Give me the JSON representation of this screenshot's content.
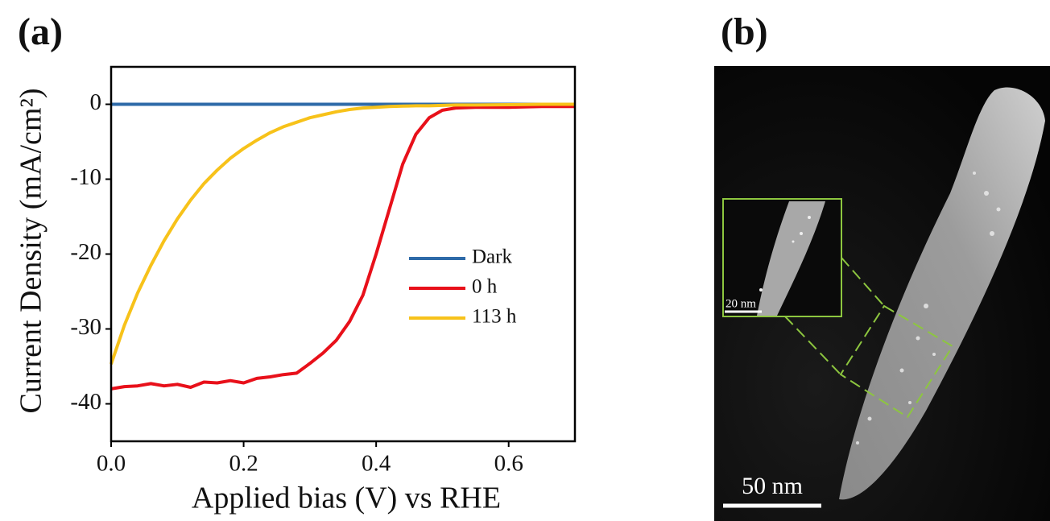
{
  "chart_data": {
    "type": "line",
    "panel_label": "(a)",
    "x_label": "Applied bias (V) vs RHE",
    "y_label": "Current Density (mA/cm²)",
    "x": [
      0,
      0.02,
      0.04,
      0.06,
      0.08,
      0.1,
      0.12,
      0.14,
      0.16,
      0.18,
      0.2,
      0.22,
      0.24,
      0.26,
      0.28,
      0.3,
      0.32,
      0.34,
      0.36,
      0.38,
      0.4,
      0.42,
      0.44,
      0.46,
      0.48,
      0.5,
      0.52,
      0.55,
      0.6,
      0.65,
      0.7
    ],
    "series": [
      {
        "name": "Dark",
        "color": "#2e6aa8",
        "values": [
          0,
          0,
          0,
          0,
          0,
          0,
          0,
          0,
          0,
          0,
          0,
          0,
          0,
          0,
          0,
          0,
          0,
          0,
          0,
          0,
          0,
          0,
          0,
          0,
          0,
          0,
          0,
          0,
          0,
          0,
          0
        ]
      },
      {
        "name": "0 h",
        "color": "#e8101a",
        "values": [
          -38,
          -37.7,
          -37.6,
          -37.3,
          -37.6,
          -37.4,
          -37.8,
          -37.1,
          -37.2,
          -36.9,
          -37.2,
          -36.6,
          -36.4,
          -36.1,
          -35.9,
          -34.6,
          -33.2,
          -31.5,
          -29,
          -25.5,
          -20,
          -14,
          -8,
          -4,
          -1.8,
          -0.8,
          -0.5,
          -0.4,
          -0.4,
          -0.3,
          -0.3
        ]
      },
      {
        "name": "113 h",
        "color": "#f7c21a",
        "values": [
          -34.7,
          -29.5,
          -25.2,
          -21.5,
          -18.2,
          -15.3,
          -12.8,
          -10.6,
          -8.8,
          -7.2,
          -5.9,
          -4.8,
          -3.8,
          -3,
          -2.4,
          -1.8,
          -1.4,
          -1,
          -0.7,
          -0.5,
          -0.4,
          -0.3,
          -0.25,
          -0.2,
          -0.2,
          -0.15,
          -0.1,
          -0.1,
          -0.05,
          0,
          0
        ]
      }
    ],
    "xlim": [
      0,
      0.7
    ],
    "ylim": [
      -45,
      5
    ],
    "xticks": [
      {
        "value": 0,
        "label": "0.0"
      },
      0.2,
      0.4,
      0.6
    ],
    "yticks": [
      0,
      -10,
      -20,
      -30,
      -40
    ],
    "legend": "right"
  },
  "image": {
    "panel_label": "(b)",
    "scale_bar": "50 nm",
    "inset_scale_bar": "20 nm"
  }
}
